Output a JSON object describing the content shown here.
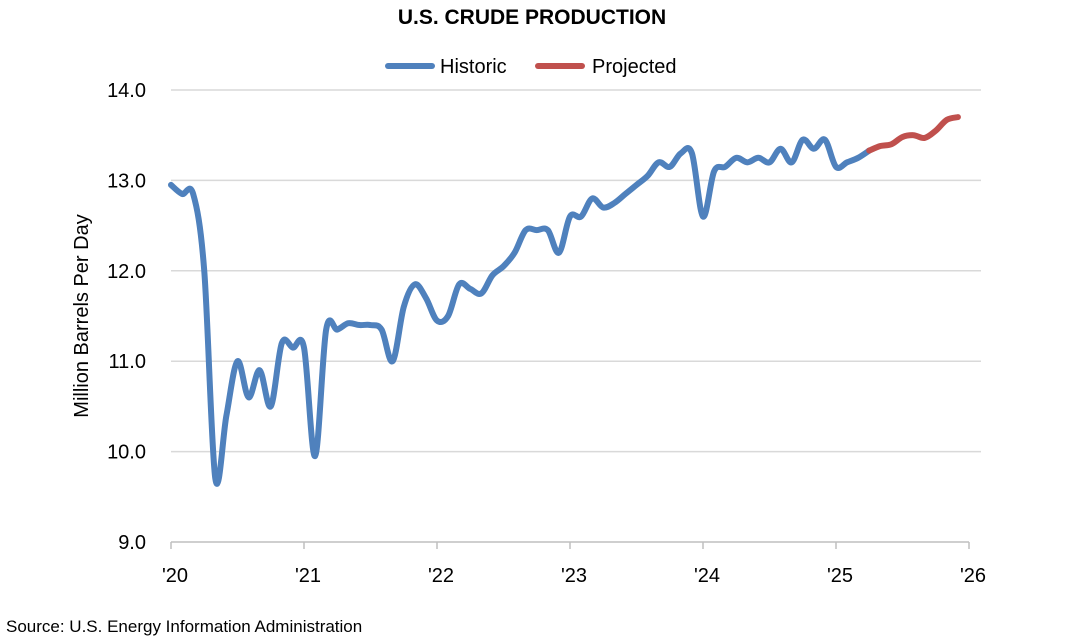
{
  "chart_data": {
    "type": "line",
    "title": "U.S. CRUDE PRODUCTION",
    "ylabel": "Million Barrels Per Day",
    "xlabel": "",
    "ylim": [
      9.0,
      14.0
    ],
    "y_ticks": [
      "9.0",
      "10.0",
      "11.0",
      "12.0",
      "13.0",
      "14.0"
    ],
    "x_ticks": [
      "'20",
      "'21",
      "'22",
      "'23",
      "'24",
      "'25",
      "'26"
    ],
    "x_unit": "months since Jan 2020",
    "xlim": [
      0,
      72
    ],
    "grid": true,
    "legend_position": "top-center",
    "series": [
      {
        "name": "Historic",
        "color": "#4F81BD",
        "start_month": 0,
        "values": [
          12.95,
          12.85,
          12.85,
          12.0,
          9.7,
          10.4,
          11.0,
          10.6,
          10.9,
          10.5,
          11.2,
          11.15,
          11.15,
          9.95,
          11.35,
          11.35,
          11.42,
          11.4,
          11.4,
          11.35,
          11.0,
          11.6,
          11.85,
          11.7,
          11.45,
          11.5,
          11.85,
          11.8,
          11.75,
          11.95,
          12.05,
          12.2,
          12.45,
          12.45,
          12.45,
          12.2,
          12.6,
          12.6,
          12.8,
          12.7,
          12.75,
          12.85,
          12.95,
          13.05,
          13.2,
          13.15,
          13.3,
          13.3,
          12.6,
          13.1,
          13.15,
          13.25,
          13.2,
          13.25,
          13.2,
          13.35,
          13.2,
          13.45,
          13.35,
          13.45,
          13.15,
          13.2,
          13.25,
          13.33
        ]
      },
      {
        "name": "Projected",
        "color": "#C0504D",
        "start_month": 63,
        "values": [
          13.33,
          13.38,
          13.4,
          13.48,
          13.5,
          13.47,
          13.55,
          13.67,
          13.7
        ]
      }
    ]
  },
  "source": "Source: U.S. Energy Information Administration"
}
